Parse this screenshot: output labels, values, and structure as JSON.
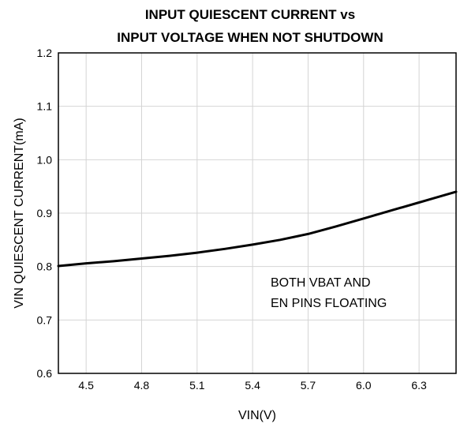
{
  "chart_data": {
    "type": "line",
    "title": [
      "INPUT QUIESCENT CURRENT vs",
      "INPUT VOLTAGE WHEN NOT SHUTDOWN"
    ],
    "xlabel": "VIN(V)",
    "ylabel": "VIN QUIESCENT CURRENT(mA)",
    "xlim": [
      4.35,
      6.5
    ],
    "ylim": [
      0.6,
      1.2
    ],
    "x_ticks": [
      "4.5",
      "4.8",
      "5.1",
      "5.4",
      "5.7",
      "6.0",
      "6.3"
    ],
    "y_ticks": [
      "0.6",
      "0.7",
      "0.8",
      "0.9",
      "1.0",
      "1.1",
      "1.2"
    ],
    "grid": true,
    "annotation": [
      "BOTH VBAT AND",
      "EN PINS FLOATING"
    ],
    "series": [
      {
        "color": "#000000",
        "x": [
          4.35,
          4.5,
          4.65,
          4.8,
          4.95,
          5.1,
          5.25,
          5.4,
          5.55,
          5.7,
          5.85,
          6.0,
          6.15,
          6.3,
          6.5
        ],
        "y": [
          0.801,
          0.806,
          0.81,
          0.815,
          0.82,
          0.826,
          0.833,
          0.841,
          0.85,
          0.861,
          0.875,
          0.89,
          0.905,
          0.92,
          0.94
        ]
      }
    ]
  }
}
